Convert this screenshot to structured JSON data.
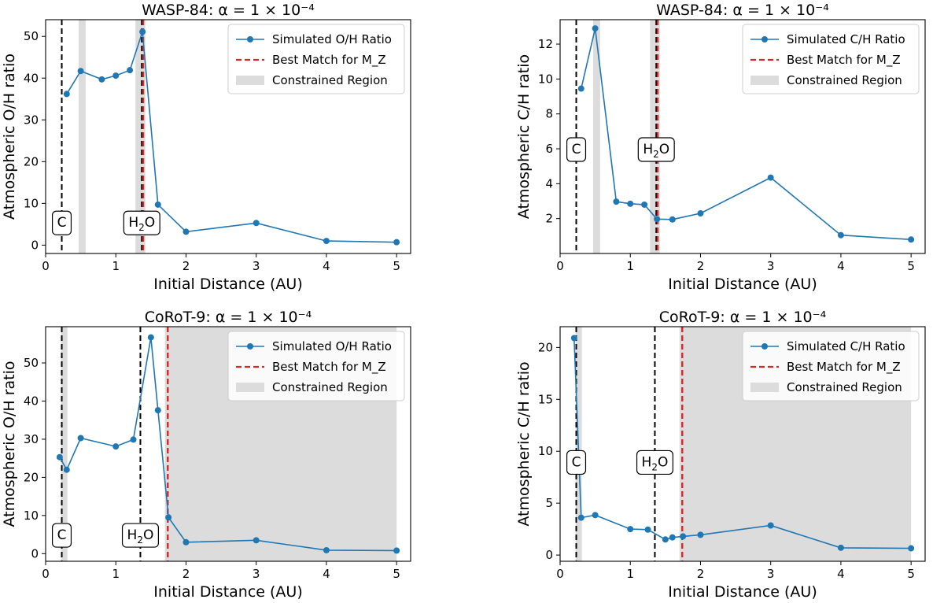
{
  "chart_data": [
    {
      "type": "line",
      "title": "WASP-84: α = 1 × 10⁻⁴",
      "xlabel": "Initial Distance (AU)",
      "ylabel": "Atmospheric O/H ratio",
      "xlim": [
        0,
        5.2
      ],
      "ylim": [
        -2,
        54
      ],
      "xticks": [
        0,
        1,
        2,
        3,
        4,
        5
      ],
      "yticks": [
        0,
        10,
        20,
        30,
        40,
        50
      ],
      "series": [
        {
          "name": "Simulated O/H Ratio",
          "color": "#1f77b4",
          "x": [
            0.3,
            0.5,
            0.8,
            1.0,
            1.2,
            1.38,
            1.6,
            2.0,
            3.0,
            4.0,
            5.0
          ],
          "y": [
            36.2,
            41.7,
            39.7,
            40.6,
            41.9,
            51.1,
            9.7,
            3.2,
            5.3,
            1.0,
            0.7
          ]
        }
      ],
      "best_match": {
        "label": "Best Match for M_Z",
        "x": 1.39,
        "color": "#d62728"
      },
      "constrained_regions": [
        [
          0.47,
          0.57
        ],
        [
          1.28,
          1.42
        ]
      ],
      "constrained_label": "Constrained Region",
      "ice_lines": [
        {
          "label": "C",
          "x": 0.23,
          "label_y": 5.5
        },
        {
          "label": "H2O",
          "x": 1.37,
          "label_y": 5.5
        }
      ],
      "legend": "top-right"
    },
    {
      "type": "line",
      "title": "WASP-84: α = 1 × 10⁻⁴",
      "xlabel": "Initial Distance (AU)",
      "ylabel": "Atmospheric C/H ratio",
      "xlim": [
        0,
        5.2
      ],
      "ylim": [
        0,
        13.4
      ],
      "xticks": [
        0,
        1,
        2,
        3,
        4,
        5
      ],
      "yticks": [
        2,
        4,
        6,
        8,
        10,
        12
      ],
      "series": [
        {
          "name": "Simulated C/H Ratio",
          "color": "#1f77b4",
          "x": [
            0.3,
            0.5,
            0.8,
            1.0,
            1.2,
            1.38,
            1.6,
            2.0,
            3.0,
            4.0,
            5.0
          ],
          "y": [
            9.45,
            12.9,
            2.97,
            2.85,
            2.8,
            1.97,
            1.95,
            2.3,
            4.35,
            1.05,
            0.8
          ]
        }
      ],
      "best_match": {
        "label": "Best Match for M_Z",
        "x": 1.39,
        "color": "#d62728"
      },
      "constrained_regions": [
        [
          0.47,
          0.57
        ],
        [
          1.28,
          1.42
        ]
      ],
      "constrained_label": "Constrained Region",
      "ice_lines": [
        {
          "label": "C",
          "x": 0.23,
          "label_y": 6.0
        },
        {
          "label": "H2O",
          "x": 1.37,
          "label_y": 6.0
        }
      ],
      "legend": "top-right"
    },
    {
      "type": "line",
      "title": "CoRoT-9: α = 1 × 10⁻⁴",
      "xlabel": "Initial Distance (AU)",
      "ylabel": "Atmospheric O/H ratio",
      "xlim": [
        0,
        5.2
      ],
      "ylim": [
        -2,
        59.5
      ],
      "xticks": [
        0,
        1,
        2,
        3,
        4,
        5
      ],
      "yticks": [
        0,
        10,
        20,
        30,
        40,
        50
      ],
      "series": [
        {
          "name": "Simulated O/H Ratio",
          "color": "#1f77b4",
          "x": [
            0.2,
            0.3,
            0.5,
            1.0,
            1.25,
            1.5,
            1.6,
            1.75,
            2.0,
            3.0,
            4.0,
            5.0
          ],
          "y": [
            25.3,
            22.0,
            30.3,
            28.1,
            29.9,
            56.7,
            37.6,
            9.5,
            3.0,
            3.5,
            0.9,
            0.8
          ]
        }
      ],
      "best_match": {
        "label": "Best Match for M_Z",
        "x": 1.74,
        "color": "#d62728"
      },
      "constrained_regions": [
        [
          0.22,
          0.31
        ],
        [
          1.7,
          5.0
        ]
      ],
      "constrained_label": "Constrained Region",
      "ice_lines": [
        {
          "label": "C",
          "x": 0.23,
          "label_y": 5.0
        },
        {
          "label": "H2O",
          "x": 1.35,
          "label_y": 5.0
        }
      ],
      "legend": "top-right"
    },
    {
      "type": "line",
      "title": "CoRoT-9: α = 1 × 10⁻⁴",
      "xlabel": "Initial Distance (AU)",
      "ylabel": "Atmospheric C/H ratio",
      "xlim": [
        0,
        5.2
      ],
      "ylim": [
        -0.6,
        22
      ],
      "xticks": [
        0,
        1,
        2,
        3,
        4,
        5
      ],
      "yticks": [
        0,
        5,
        10,
        15,
        20
      ],
      "series": [
        {
          "name": "Simulated C/H Ratio",
          "color": "#1f77b4",
          "x": [
            0.2,
            0.3,
            0.5,
            1.0,
            1.25,
            1.5,
            1.6,
            1.75,
            2.0,
            3.0,
            4.0,
            5.0
          ],
          "y": [
            20.9,
            3.6,
            3.85,
            2.5,
            2.45,
            1.5,
            1.7,
            1.8,
            1.95,
            2.85,
            0.7,
            0.65
          ]
        }
      ],
      "best_match": {
        "label": "Best Match for M_Z",
        "x": 1.74,
        "color": "#d62728"
      },
      "constrained_regions": [
        [
          0.22,
          0.31
        ],
        [
          1.7,
          5.0
        ]
      ],
      "constrained_label": "Constrained Region",
      "ice_lines": [
        {
          "label": "C",
          "x": 0.23,
          "label_y": 9.0
        },
        {
          "label": "H2O",
          "x": 1.35,
          "label_y": 9.0
        }
      ],
      "legend": "top-right"
    }
  ]
}
